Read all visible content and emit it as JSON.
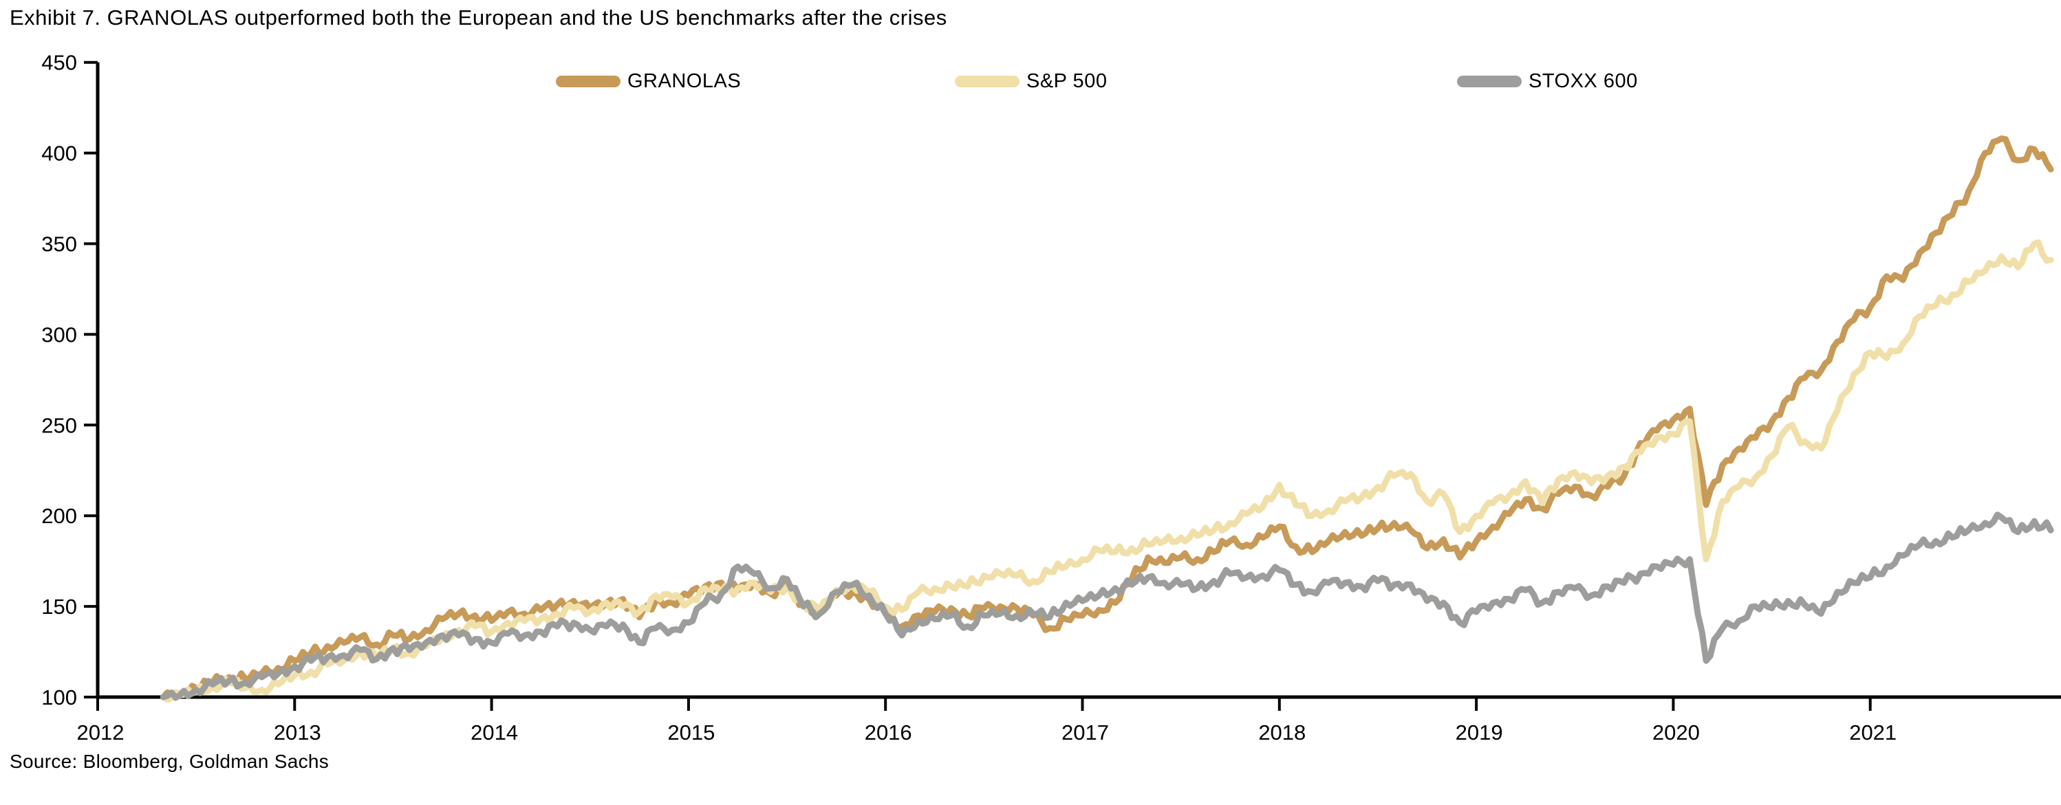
{
  "title": "Exhibit 7. GRANOLAS outperformed both the European and the US benchmarks after the crises",
  "source": "Source: Bloomberg, Goldman Sachs",
  "legend": [
    {
      "label": "GRANOLAS",
      "color": "#c79a58"
    },
    {
      "label": "S&P 500",
      "color": "#f0dfa8"
    },
    {
      "label": "STOXX 600",
      "color": "#9d9d9c"
    }
  ],
  "chart_data": {
    "type": "line",
    "title": "Exhibit 7. GRANOLAS outperformed both the European and the US benchmarks after the crises",
    "xlabel": "",
    "ylabel": "",
    "x_ticks": [
      2012,
      2013,
      2014,
      2015,
      2016,
      2017,
      2018,
      2019,
      2020,
      2021
    ],
    "y_ticks": [
      100,
      150,
      200,
      250,
      300,
      350,
      400,
      450
    ],
    "ylim": [
      100,
      450
    ],
    "xlim": [
      2012,
      2022.05
    ],
    "grid": false,
    "legend_position": "top",
    "x_start": "2012-05",
    "frequency": "monthly",
    "indexed_to": 100,
    "series": [
      {
        "name": "GRANOLAS",
        "color": "#c79a58",
        "values": [
          100,
          102,
          105,
          108,
          111,
          110,
          113,
          116,
          120,
          124,
          128,
          130,
          133,
          129,
          134,
          132,
          137,
          143,
          146,
          145,
          142,
          147,
          146,
          148,
          151,
          153,
          149,
          152,
          154,
          144,
          153,
          152,
          156,
          161,
          163,
          159,
          163,
          157,
          161,
          151,
          148,
          156,
          158,
          154,
          146,
          139,
          145,
          147,
          149,
          145,
          149,
          150,
          149,
          145,
          138,
          143,
          145,
          148,
          152,
          165,
          177,
          174,
          177,
          176,
          180,
          186,
          184,
          188,
          194,
          183,
          180,
          186,
          191,
          189,
          193,
          196,
          192,
          182,
          187,
          177,
          186,
          194,
          201,
          209,
          204,
          212,
          216,
          211,
          216,
          222,
          240,
          247,
          253,
          259,
          206,
          228,
          237,
          243,
          252,
          265,
          276,
          280,
          296,
          308,
          315,
          332,
          330,
          345,
          356,
          366,
          379,
          400,
          408,
          396,
          402,
          391
        ]
      },
      {
        "name": "S&P 500",
        "color": "#f0dfa8",
        "values": [
          100,
          101,
          103,
          106,
          108,
          105,
          104,
          107,
          112,
          114,
          118,
          120,
          125,
          122,
          127,
          124,
          128,
          133,
          137,
          139,
          136,
          141,
          142,
          143,
          146,
          149,
          147,
          152,
          150,
          147,
          156,
          155,
          152,
          160,
          158,
          160,
          163,
          158,
          161,
          151,
          148,
          159,
          161,
          158,
          150,
          148,
          158,
          160,
          161,
          161,
          167,
          168,
          167,
          164,
          169,
          172,
          176,
          181,
          180,
          182,
          184,
          186,
          188,
          189,
          192,
          196,
          201,
          205,
          217,
          206,
          200,
          203,
          208,
          210,
          216,
          222,
          223,
          208,
          212,
          191,
          200,
          207,
          211,
          219,
          207,
          220,
          224,
          218,
          222,
          227,
          235,
          243,
          245,
          252,
          176,
          208,
          216,
          221,
          233,
          249,
          241,
          237,
          258,
          278,
          290,
          287,
          295,
          310,
          316,
          322,
          329,
          335,
          343,
          337,
          350,
          341
        ]
      },
      {
        "name": "STOXX 600",
        "color": "#9d9d9c",
        "values": [
          100,
          101,
          104,
          107,
          109,
          108,
          111,
          113,
          117,
          120,
          122,
          123,
          126,
          121,
          127,
          126,
          130,
          134,
          134,
          132,
          130,
          135,
          134,
          136,
          139,
          141,
          137,
          139,
          140,
          130,
          138,
          137,
          141,
          152,
          157,
          172,
          168,
          160,
          165,
          150,
          146,
          158,
          162,
          156,
          146,
          134,
          142,
          143,
          145,
          139,
          145,
          146,
          145,
          146,
          144,
          152,
          153,
          156,
          160,
          162,
          166,
          163,
          162,
          160,
          164,
          168,
          166,
          167,
          170,
          162,
          158,
          163,
          163,
          161,
          164,
          162,
          162,
          153,
          152,
          141,
          147,
          152,
          154,
          159,
          152,
          158,
          160,
          156,
          161,
          163,
          168,
          172,
          173,
          176,
          120,
          138,
          142,
          150,
          149,
          153,
          151,
          146,
          158,
          163,
          166,
          172,
          178,
          184,
          186,
          188,
          192,
          196,
          199,
          191,
          197,
          192
        ]
      }
    ]
  }
}
